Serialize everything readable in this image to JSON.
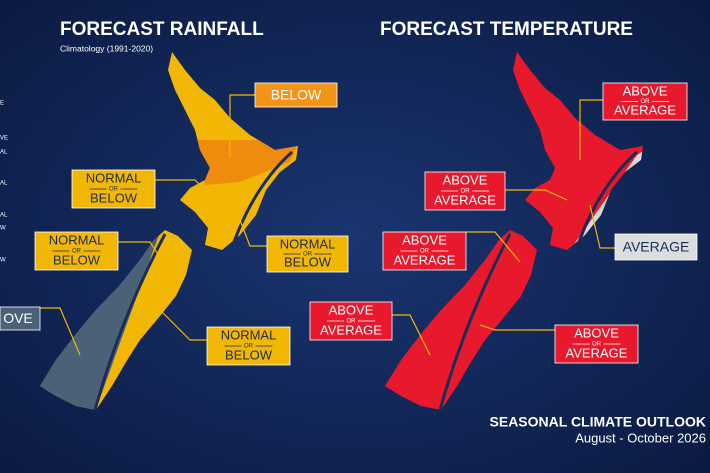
{
  "left_legend_fragments": [
    "E",
    "VE",
    "AL",
    "AL",
    "AL",
    "W",
    "W"
  ],
  "rainfall": {
    "title": "FORECAST RAINFALL",
    "subtitle": "Climatology (1991-2020)",
    "labels": [
      {
        "lines": [
          "BELOW"
        ]
      },
      {
        "lines": [
          "NORMAL",
          "OR",
          "BELOW"
        ]
      },
      {
        "lines": [
          "NORMAL",
          "OR",
          "BELOW"
        ]
      },
      {
        "lines": [
          "NORMAL",
          "OR",
          "BELOW"
        ]
      },
      {
        "lines": [
          "NORMAL",
          "OR",
          "BELOW"
        ]
      },
      {
        "lines": [
          "OVE"
        ]
      }
    ]
  },
  "temperature": {
    "title": "FORECAST TEMPERATURE",
    "labels": [
      {
        "lines": [
          "ABOVE",
          "OR",
          "AVERAGE"
        ]
      },
      {
        "lines": [
          "ABOVE",
          "OR",
          "AVERAGE"
        ]
      },
      {
        "lines": [
          "ABOVE",
          "OR",
          "AVERAGE"
        ]
      },
      {
        "lines": [
          "AVERAGE"
        ]
      },
      {
        "lines": [
          "ABOVE",
          "OR",
          "AVERAGE"
        ]
      },
      {
        "lines": [
          "ABOVE",
          "OR",
          "AVERAGE"
        ]
      }
    ]
  },
  "footer": {
    "title": "SEASONAL CLIMATE OUTLOOK",
    "dates": "August - October 2026"
  }
}
